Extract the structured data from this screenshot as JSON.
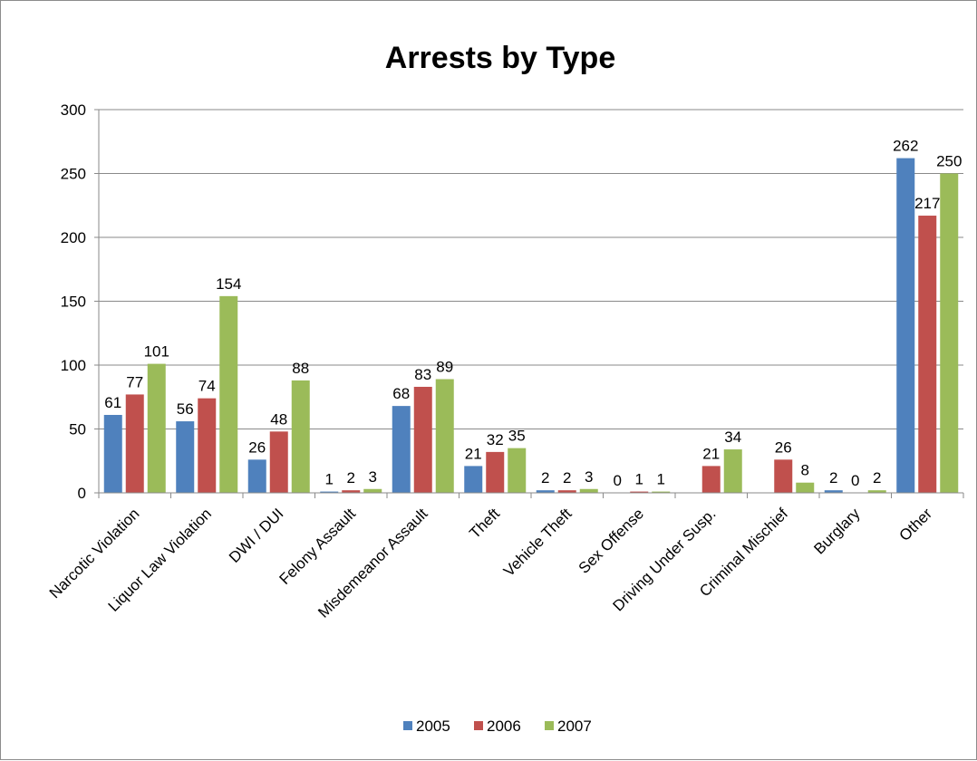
{
  "chart_data": {
    "type": "bar",
    "title": "Arrests by Type",
    "xlabel": "",
    "ylabel": "",
    "ylim": [
      0,
      300
    ],
    "yticks": [
      0,
      50,
      100,
      150,
      200,
      250,
      300
    ],
    "grid": true,
    "legend_position": "bottom",
    "categories": [
      "Narcotic Violation",
      "Liquor Law Violation",
      "DWI / DUI",
      "Felony Assault",
      "Misdemeanor Assault",
      "Theft",
      "Vehicle Theft",
      "Sex Offense",
      "Driving Under Susp.",
      "Criminal Mischief",
      "Burglary",
      "Other"
    ],
    "series": [
      {
        "name": "2005",
        "color": "#4f81bd",
        "values": [
          61,
          56,
          26,
          1,
          68,
          21,
          2,
          0,
          null,
          null,
          2,
          262
        ]
      },
      {
        "name": "2006",
        "color": "#c0504d",
        "values": [
          77,
          74,
          48,
          2,
          83,
          32,
          2,
          1,
          21,
          26,
          0,
          217
        ]
      },
      {
        "name": "2007",
        "color": "#9bbb59",
        "values": [
          101,
          154,
          88,
          3,
          89,
          35,
          3,
          1,
          34,
          8,
          2,
          250
        ]
      }
    ]
  }
}
